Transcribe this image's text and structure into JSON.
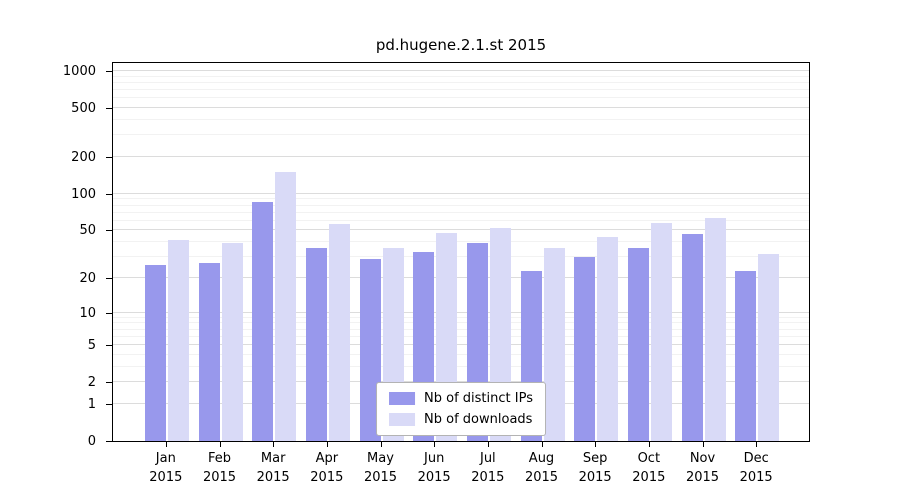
{
  "chart_data": {
    "type": "bar",
    "title": "pd.hugene.2.1.st 2015",
    "year": "2015",
    "categories": [
      "Jan",
      "Feb",
      "Mar",
      "Apr",
      "May",
      "Jun",
      "Jul",
      "Aug",
      "Sep",
      "Oct",
      "Nov",
      "Dec"
    ],
    "series": [
      {
        "name": "Nb of distinct IPs",
        "color": "#9898ec",
        "values": [
          26,
          27,
          85,
          36,
          29,
          33,
          39,
          23,
          30,
          36,
          47,
          23
        ]
      },
      {
        "name": "Nb of downloads",
        "color": "#d9daf7",
        "values": [
          42,
          39,
          150,
          56,
          36,
          48,
          52,
          36,
          44,
          58,
          63,
          32
        ]
      }
    ],
    "yticks": [
      0,
      1,
      2,
      5,
      10,
      20,
      50,
      100,
      200,
      500,
      1000
    ],
    "y_minor_ticks": [
      3,
      4,
      6,
      7,
      8,
      9,
      30,
      40,
      60,
      70,
      80,
      90,
      300,
      400,
      600,
      700,
      800,
      900
    ],
    "scale": "log1p",
    "ylim": [
      0,
      1000
    ],
    "grid": true,
    "legend_position": "bottom-center-inside"
  }
}
